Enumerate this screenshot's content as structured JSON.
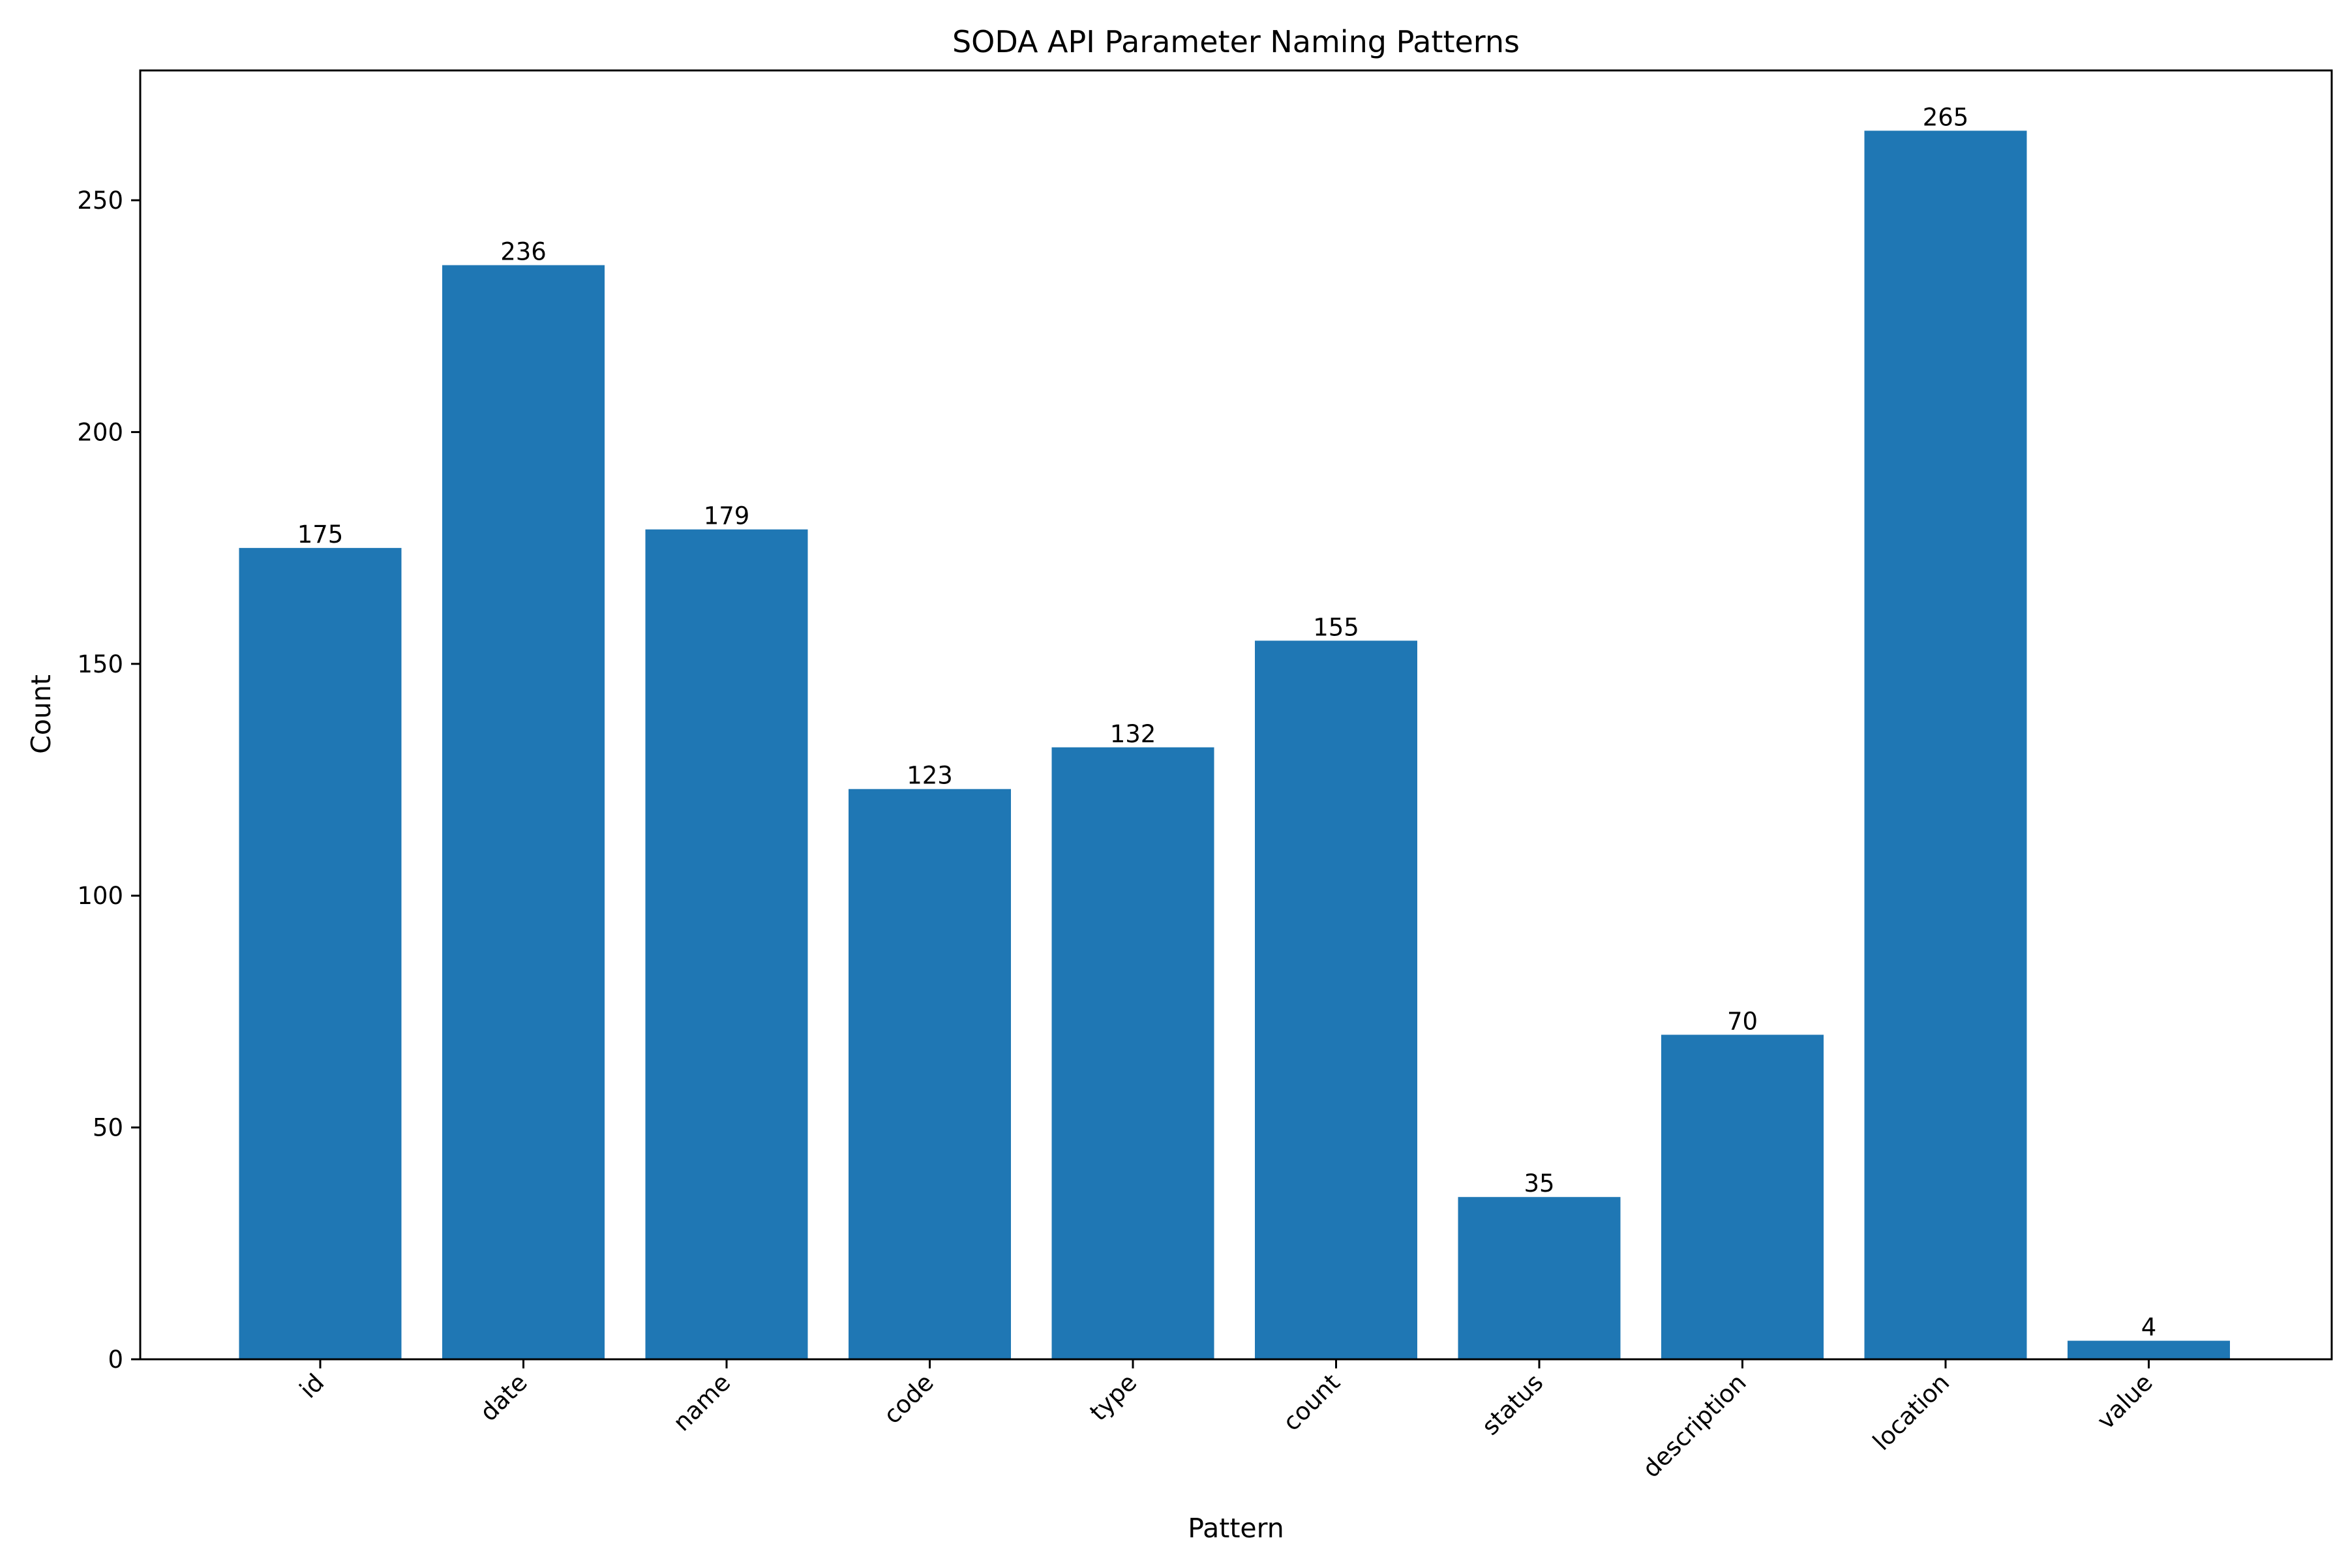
{
  "chart_data": {
    "type": "bar",
    "title": "SODA API Parameter Naming Patterns",
    "xlabel": "Pattern",
    "ylabel": "Count",
    "categories": [
      "id",
      "date",
      "name",
      "code",
      "type",
      "count",
      "status",
      "description",
      "location",
      "value"
    ],
    "values": [
      175,
      236,
      179,
      123,
      132,
      155,
      35,
      70,
      265,
      4
    ],
    "ylim": [
      0,
      278
    ],
    "yticks": [
      0,
      50,
      100,
      150,
      200,
      250
    ],
    "grid": false,
    "legend": "none",
    "bar_color": "#1f77b4",
    "data_labels": [
      "175",
      "236",
      "179",
      "123",
      "132",
      "155",
      "35",
      "70",
      "265",
      "4"
    ],
    "ytick_labels": [
      "0",
      "50",
      "100",
      "150",
      "200",
      "250"
    ]
  }
}
